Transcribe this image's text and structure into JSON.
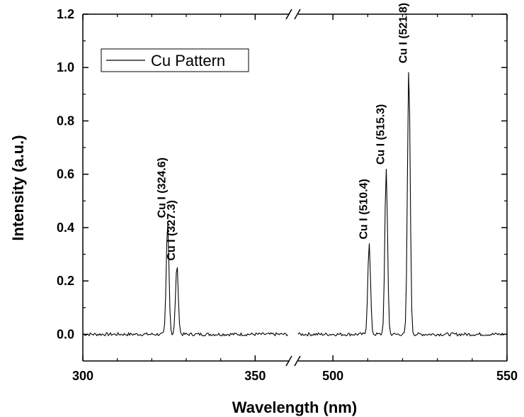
{
  "chart_data": {
    "type": "line",
    "xlabel": "Wavelength (nm)",
    "ylabel": "Intensity (a.u.)",
    "x_axis": {
      "broken": true,
      "segments": [
        {
          "range": [
            300,
            360
          ],
          "ticks": [
            300,
            350
          ]
        },
        {
          "range": [
            490,
            550
          ],
          "ticks": [
            500,
            550
          ]
        }
      ]
    },
    "ylim": [
      -0.1,
      1.2
    ],
    "y_ticks": [
      "0.0",
      "0.2",
      "0.4",
      "0.6",
      "0.8",
      "1.0",
      "1.2"
    ],
    "x_tick_labels": [
      "300",
      "350",
      "500",
      "550"
    ],
    "grid": false,
    "legend": {
      "position": "top-left",
      "entries": [
        "Cu Pattern"
      ]
    },
    "series": [
      {
        "name": "Cu Pattern",
        "color": "#000000",
        "peaks": [
          {
            "x": 324.6,
            "y": 0.42
          },
          {
            "x": 327.3,
            "y": 0.26
          },
          {
            "x": 510.4,
            "y": 0.34
          },
          {
            "x": 515.3,
            "y": 0.62
          },
          {
            "x": 521.8,
            "y": 1.0
          }
        ],
        "baseline": 0.0
      }
    ],
    "annotations": [
      {
        "text": "Cu I (324.6)",
        "x": 324.6,
        "y": 0.42
      },
      {
        "text": "Cu I (327.3)",
        "x": 327.3,
        "y": 0.26
      },
      {
        "text": "Cu I (510.4)",
        "x": 510.4,
        "y": 0.34
      },
      {
        "text": "Cu I (515.3)",
        "x": 515.3,
        "y": 0.62
      },
      {
        "text": "Cu I (521.8)",
        "x": 521.8,
        "y": 1.0
      }
    ]
  }
}
